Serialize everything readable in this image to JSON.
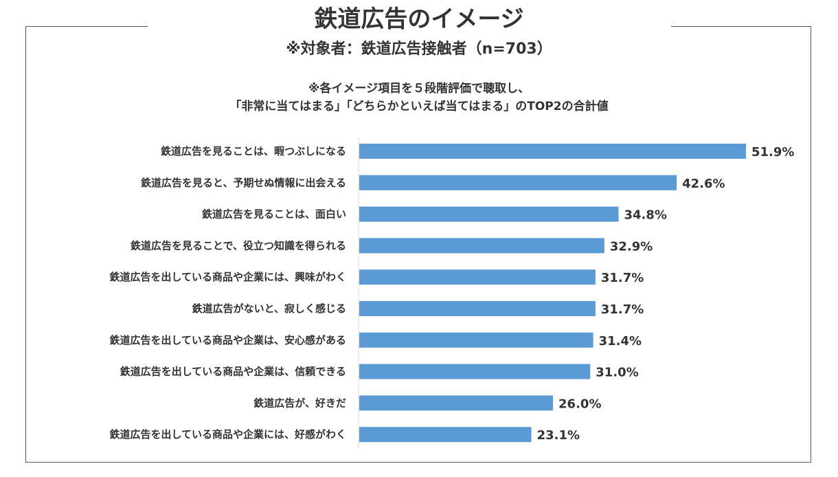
{
  "header": {
    "title": "鉄道広告のイメージ",
    "subtitle": "※対象者：鉄道広告接触者（n=703）",
    "note_line1": "※各イメージ項目を５段階評価で聴取し、",
    "note_line2": "「非常に当てはまる」「どちらかといえば当てはまる」のTOP2の合計値"
  },
  "chart_data": {
    "type": "bar",
    "orientation": "horizontal",
    "title": "鉄道広告のイメージ",
    "xlabel": "",
    "ylabel": "",
    "xlim": [
      0,
      55
    ],
    "unit": "%",
    "bar_color": "#5b9bd5",
    "categories": [
      "鉄道広告を見ることは、暇つぶしになる",
      "鉄道広告を見ると、予期せぬ情報に出会える",
      "鉄道広告を見ることは、面白い",
      "鉄道広告を見ることで、役立つ知識を得られる",
      "鉄道広告を出している商品や企業には、興味がわく",
      "鉄道広告がないと、寂しく感じる",
      "鉄道広告を出している商品や企業は、安心感がある",
      "鉄道広告を出している商品や企業は、信頼できる",
      "鉄道広告が、好きだ",
      "鉄道広告を出している商品や企業には、好感がわく"
    ],
    "values": [
      51.9,
      42.6,
      34.8,
      32.9,
      31.7,
      31.7,
      31.4,
      31.0,
      26.0,
      23.1
    ],
    "value_labels": [
      "51.9%",
      "42.6%",
      "34.8%",
      "32.9%",
      "31.7%",
      "31.7%",
      "31.4%",
      "31.0%",
      "26.0%",
      "23.1%"
    ]
  }
}
